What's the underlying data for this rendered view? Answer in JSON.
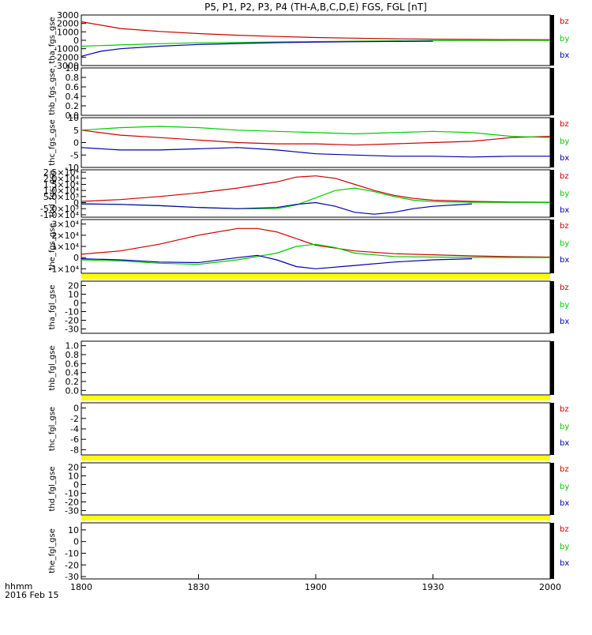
{
  "title": "P5, P1, P2, P3, P4 (TH-A,B,C,D,E) FGS, FGL [nT]",
  "footer": {
    "time_label": "hhmm",
    "date_label": "2016 Feb 15"
  },
  "colors": {
    "bz": "#cc0000",
    "by": "#00cc00",
    "bx": "#0000aa",
    "warn_bar": "#ffff00",
    "frame": "#000000"
  },
  "chart_data": [
    {
      "type": "line",
      "ylabel": "tha_fgs_gse",
      "ylim": [
        -3000,
        3000
      ],
      "yticks": [
        {
          "value": 3000,
          "label": "3000"
        },
        {
          "value": 2000,
          "label": "2000"
        },
        {
          "value": 1000,
          "label": "1000"
        },
        {
          "value": 0,
          "label": "0"
        },
        {
          "value": -1000,
          "label": "-1000"
        },
        {
          "value": -2000,
          "label": "-2000"
        },
        {
          "value": -3000,
          "label": "-3000"
        }
      ],
      "legend": [
        "bz",
        "by",
        "bx"
      ],
      "series": [
        {
          "name": "bz",
          "x": [
            0,
            10,
            20,
            30,
            40,
            50,
            60,
            70,
            80,
            90,
            100,
            110,
            120
          ],
          "y": [
            2200,
            1400,
            1050,
            800,
            600,
            450,
            330,
            250,
            180,
            130,
            100,
            80,
            60
          ]
        },
        {
          "name": "by",
          "x": [
            0,
            10,
            20,
            30,
            40,
            50,
            60,
            70,
            80,
            90,
            100,
            110,
            120
          ],
          "y": [
            -700,
            -550,
            -400,
            -300,
            -250,
            -200,
            -150,
            -100,
            -70,
            -50,
            -30,
            -20,
            -10
          ]
        },
        {
          "name": "bx",
          "x": [
            0,
            5,
            10,
            20,
            30,
            40,
            50,
            60,
            70,
            80,
            90
          ],
          "y": [
            -1900,
            -1300,
            -1000,
            -700,
            -500,
            -380,
            -280,
            -220,
            -170,
            -130,
            -100
          ]
        }
      ]
    },
    {
      "type": "line",
      "ylabel": "thb_fgs_gse",
      "ylim": [
        0,
        1
      ],
      "yticks": [
        {
          "value": 1.0,
          "label": "1.0"
        },
        {
          "value": 0.8,
          "label": "0.8"
        },
        {
          "value": 0.6,
          "label": "0.6"
        },
        {
          "value": 0.4,
          "label": "0.4"
        },
        {
          "value": 0.2,
          "label": "0.2"
        },
        {
          "value": 0.0,
          "label": "0.0"
        }
      ],
      "legend": [],
      "series": []
    },
    {
      "type": "line",
      "ylabel": "thc_fgs_gse",
      "ylim": [
        -10,
        10
      ],
      "yticks": [
        {
          "value": 10,
          "label": "10"
        },
        {
          "value": 5,
          "label": "5"
        },
        {
          "value": 0,
          "label": "0"
        },
        {
          "value": -5,
          "label": "-5"
        },
        {
          "value": -10,
          "label": "-10"
        }
      ],
      "legend": [
        "bz",
        "by",
        "bx"
      ],
      "series": [
        {
          "name": "bz",
          "x": [
            0,
            10,
            20,
            30,
            40,
            50,
            60,
            70,
            80,
            90,
            100,
            110,
            120
          ],
          "y": [
            5,
            3,
            2,
            1,
            0,
            -0.5,
            -0.5,
            -1,
            -0.5,
            0,
            0.5,
            2,
            2.5
          ]
        },
        {
          "name": "by",
          "x": [
            0,
            10,
            20,
            30,
            40,
            50,
            60,
            70,
            80,
            90,
            100,
            110,
            120
          ],
          "y": [
            5,
            6,
            6.5,
            6,
            5,
            4.5,
            4,
            3.5,
            4,
            4.5,
            4,
            2.5,
            2
          ]
        },
        {
          "name": "bx",
          "x": [
            0,
            10,
            20,
            30,
            40,
            50,
            60,
            70,
            80,
            90,
            100,
            110,
            120
          ],
          "y": [
            -2,
            -3,
            -3,
            -2.5,
            -2,
            -3,
            -4.5,
            -5,
            -5.5,
            -5.5,
            -5.8,
            -5.5,
            -5.5
          ]
        }
      ]
    },
    {
      "type": "line",
      "ylabel": "thd_fgs_gse",
      "ylim": [
        -12000,
        27000
      ],
      "yticks": [
        {
          "value": 25000,
          "label": "2.5×10⁴"
        },
        {
          "value": 20000,
          "label": "2.0×10⁴"
        },
        {
          "value": 15000,
          "label": "1.5×10⁴"
        },
        {
          "value": 10000,
          "label": "1.0×10⁴"
        },
        {
          "value": 5000,
          "label": "5.0×10³"
        },
        {
          "value": 0,
          "label": "0"
        },
        {
          "value": -5000,
          "label": "-5.0×10³"
        },
        {
          "value": -10000,
          "label": "-1.0×10⁴"
        }
      ],
      "legend": [
        "bz",
        "by",
        "bx"
      ],
      "series": [
        {
          "name": "bz",
          "x": [
            0,
            10,
            20,
            30,
            40,
            50,
            55,
            60,
            65,
            70,
            75,
            80,
            85,
            90,
            100,
            110,
            120
          ],
          "y": [
            1000,
            2500,
            5000,
            8000,
            12000,
            17000,
            21000,
            22000,
            20000,
            15000,
            10000,
            6000,
            3500,
            2000,
            1000,
            500,
            300
          ]
        },
        {
          "name": "by",
          "x": [
            0,
            10,
            20,
            30,
            40,
            50,
            55,
            60,
            65,
            70,
            75,
            80,
            85,
            90,
            100,
            110,
            120
          ],
          "y": [
            -1000,
            -1500,
            -2500,
            -4000,
            -5000,
            -5000,
            -2000,
            4000,
            10000,
            12000,
            9000,
            5000,
            2000,
            800,
            300,
            100,
            0
          ]
        },
        {
          "name": "bx",
          "x": [
            0,
            10,
            20,
            30,
            40,
            50,
            55,
            60,
            65,
            70,
            75,
            80,
            85,
            90,
            100
          ],
          "y": [
            -1000,
            -1500,
            -2500,
            -4000,
            -5000,
            -4000,
            -1500,
            0,
            -3000,
            -8000,
            -9500,
            -8000,
            -5000,
            -3000,
            -1000
          ]
        }
      ]
    },
    {
      "type": "line",
      "ylabel": "the_fgs_gse",
      "ylim": [
        -14000,
        34000
      ],
      "yticks": [
        {
          "value": 30000,
          "label": "3×10⁴"
        },
        {
          "value": 20000,
          "label": "2×10⁴"
        },
        {
          "value": 10000,
          "label": "1×10⁴"
        },
        {
          "value": 0,
          "label": "0"
        },
        {
          "value": -10000,
          "label": "-1×10⁴"
        }
      ],
      "legend": [
        "bz",
        "by",
        "bx"
      ],
      "series": [
        {
          "name": "bz",
          "x": [
            0,
            10,
            20,
            30,
            40,
            45,
            50,
            55,
            60,
            70,
            80,
            90,
            100,
            110,
            120
          ],
          "y": [
            3000,
            6000,
            12000,
            20000,
            26000,
            26000,
            23000,
            17000,
            11000,
            6000,
            3500,
            2500,
            1500,
            800,
            500
          ]
        },
        {
          "name": "by",
          "x": [
            0,
            10,
            20,
            30,
            40,
            50,
            55,
            60,
            65,
            70,
            80,
            90,
            100,
            110,
            120
          ],
          "y": [
            -2000,
            -3000,
            -5000,
            -6000,
            -2000,
            4000,
            10000,
            12000,
            9000,
            4000,
            1000,
            500,
            200,
            100,
            0
          ]
        },
        {
          "name": "bx",
          "x": [
            0,
            10,
            20,
            30,
            40,
            45,
            50,
            55,
            60,
            70,
            80,
            90,
            100
          ],
          "y": [
            -1000,
            -2000,
            -4000,
            -4500,
            0,
            2000,
            -2000,
            -8000,
            -10000,
            -7000,
            -4000,
            -2000,
            -1000
          ]
        }
      ]
    },
    {
      "type": "line",
      "ylabel": "tha_fgl_gse",
      "ylim": [
        -35,
        25
      ],
      "yticks": [
        {
          "value": 20,
          "label": "20"
        },
        {
          "value": 10,
          "label": "10"
        },
        {
          "value": 0,
          "label": "0"
        },
        {
          "value": -10,
          "label": "-10"
        },
        {
          "value": -20,
          "label": "-20"
        },
        {
          "value": -30,
          "label": "-30"
        }
      ],
      "legend": [
        "bz",
        "by",
        "bx"
      ],
      "series": []
    },
    {
      "type": "line",
      "ylabel": "thb_fgl_gse",
      "ylim": [
        -0.1,
        1.1
      ],
      "yticks": [
        {
          "value": 1.0,
          "label": "1.0"
        },
        {
          "value": 0.8,
          "label": "0.8"
        },
        {
          "value": 0.6,
          "label": "0.6"
        },
        {
          "value": 0.4,
          "label": "0.4"
        },
        {
          "value": 0.2,
          "label": "0.2"
        },
        {
          "value": 0.0,
          "label": "0.0"
        }
      ],
      "legend": [],
      "series": []
    },
    {
      "type": "line",
      "ylabel": "thc_fgl_gse",
      "ylim": [
        -9,
        1
      ],
      "yticks": [
        {
          "value": 0,
          "label": "0"
        },
        {
          "value": -2,
          "label": "-2"
        },
        {
          "value": -4,
          "label": "-4"
        },
        {
          "value": -6,
          "label": "-6"
        },
        {
          "value": -8,
          "label": "-8"
        }
      ],
      "legend": [
        "bz",
        "by",
        "bx"
      ],
      "series": []
    },
    {
      "type": "line",
      "ylabel": "thd_fgl_gse",
      "ylim": [
        -35,
        25
      ],
      "yticks": [
        {
          "value": 20,
          "label": "20"
        },
        {
          "value": 10,
          "label": "10"
        },
        {
          "value": 0,
          "label": "0"
        },
        {
          "value": -10,
          "label": "-10"
        },
        {
          "value": -20,
          "label": "-20"
        },
        {
          "value": -30,
          "label": "-30"
        }
      ],
      "legend": [
        "bz",
        "by",
        "bx"
      ],
      "series": []
    },
    {
      "type": "line",
      "ylabel": "the_fgl_gse",
      "ylim": [
        -32,
        16
      ],
      "yticks": [
        {
          "value": 10,
          "label": "10"
        },
        {
          "value": 0,
          "label": "0"
        },
        {
          "value": -10,
          "label": "-10"
        },
        {
          "value": -20,
          "label": "-20"
        },
        {
          "value": -30,
          "label": "-30"
        }
      ],
      "legend": [
        "bz",
        "by",
        "bx"
      ],
      "series": []
    }
  ],
  "xaxis": {
    "range": [
      0,
      120
    ],
    "ticks": [
      {
        "value": 0,
        "label": "1800"
      },
      {
        "value": 30,
        "label": "1830"
      },
      {
        "value": 60,
        "label": "1900"
      },
      {
        "value": 90,
        "label": "1930"
      },
      {
        "value": 120,
        "label": "2000"
      }
    ]
  }
}
